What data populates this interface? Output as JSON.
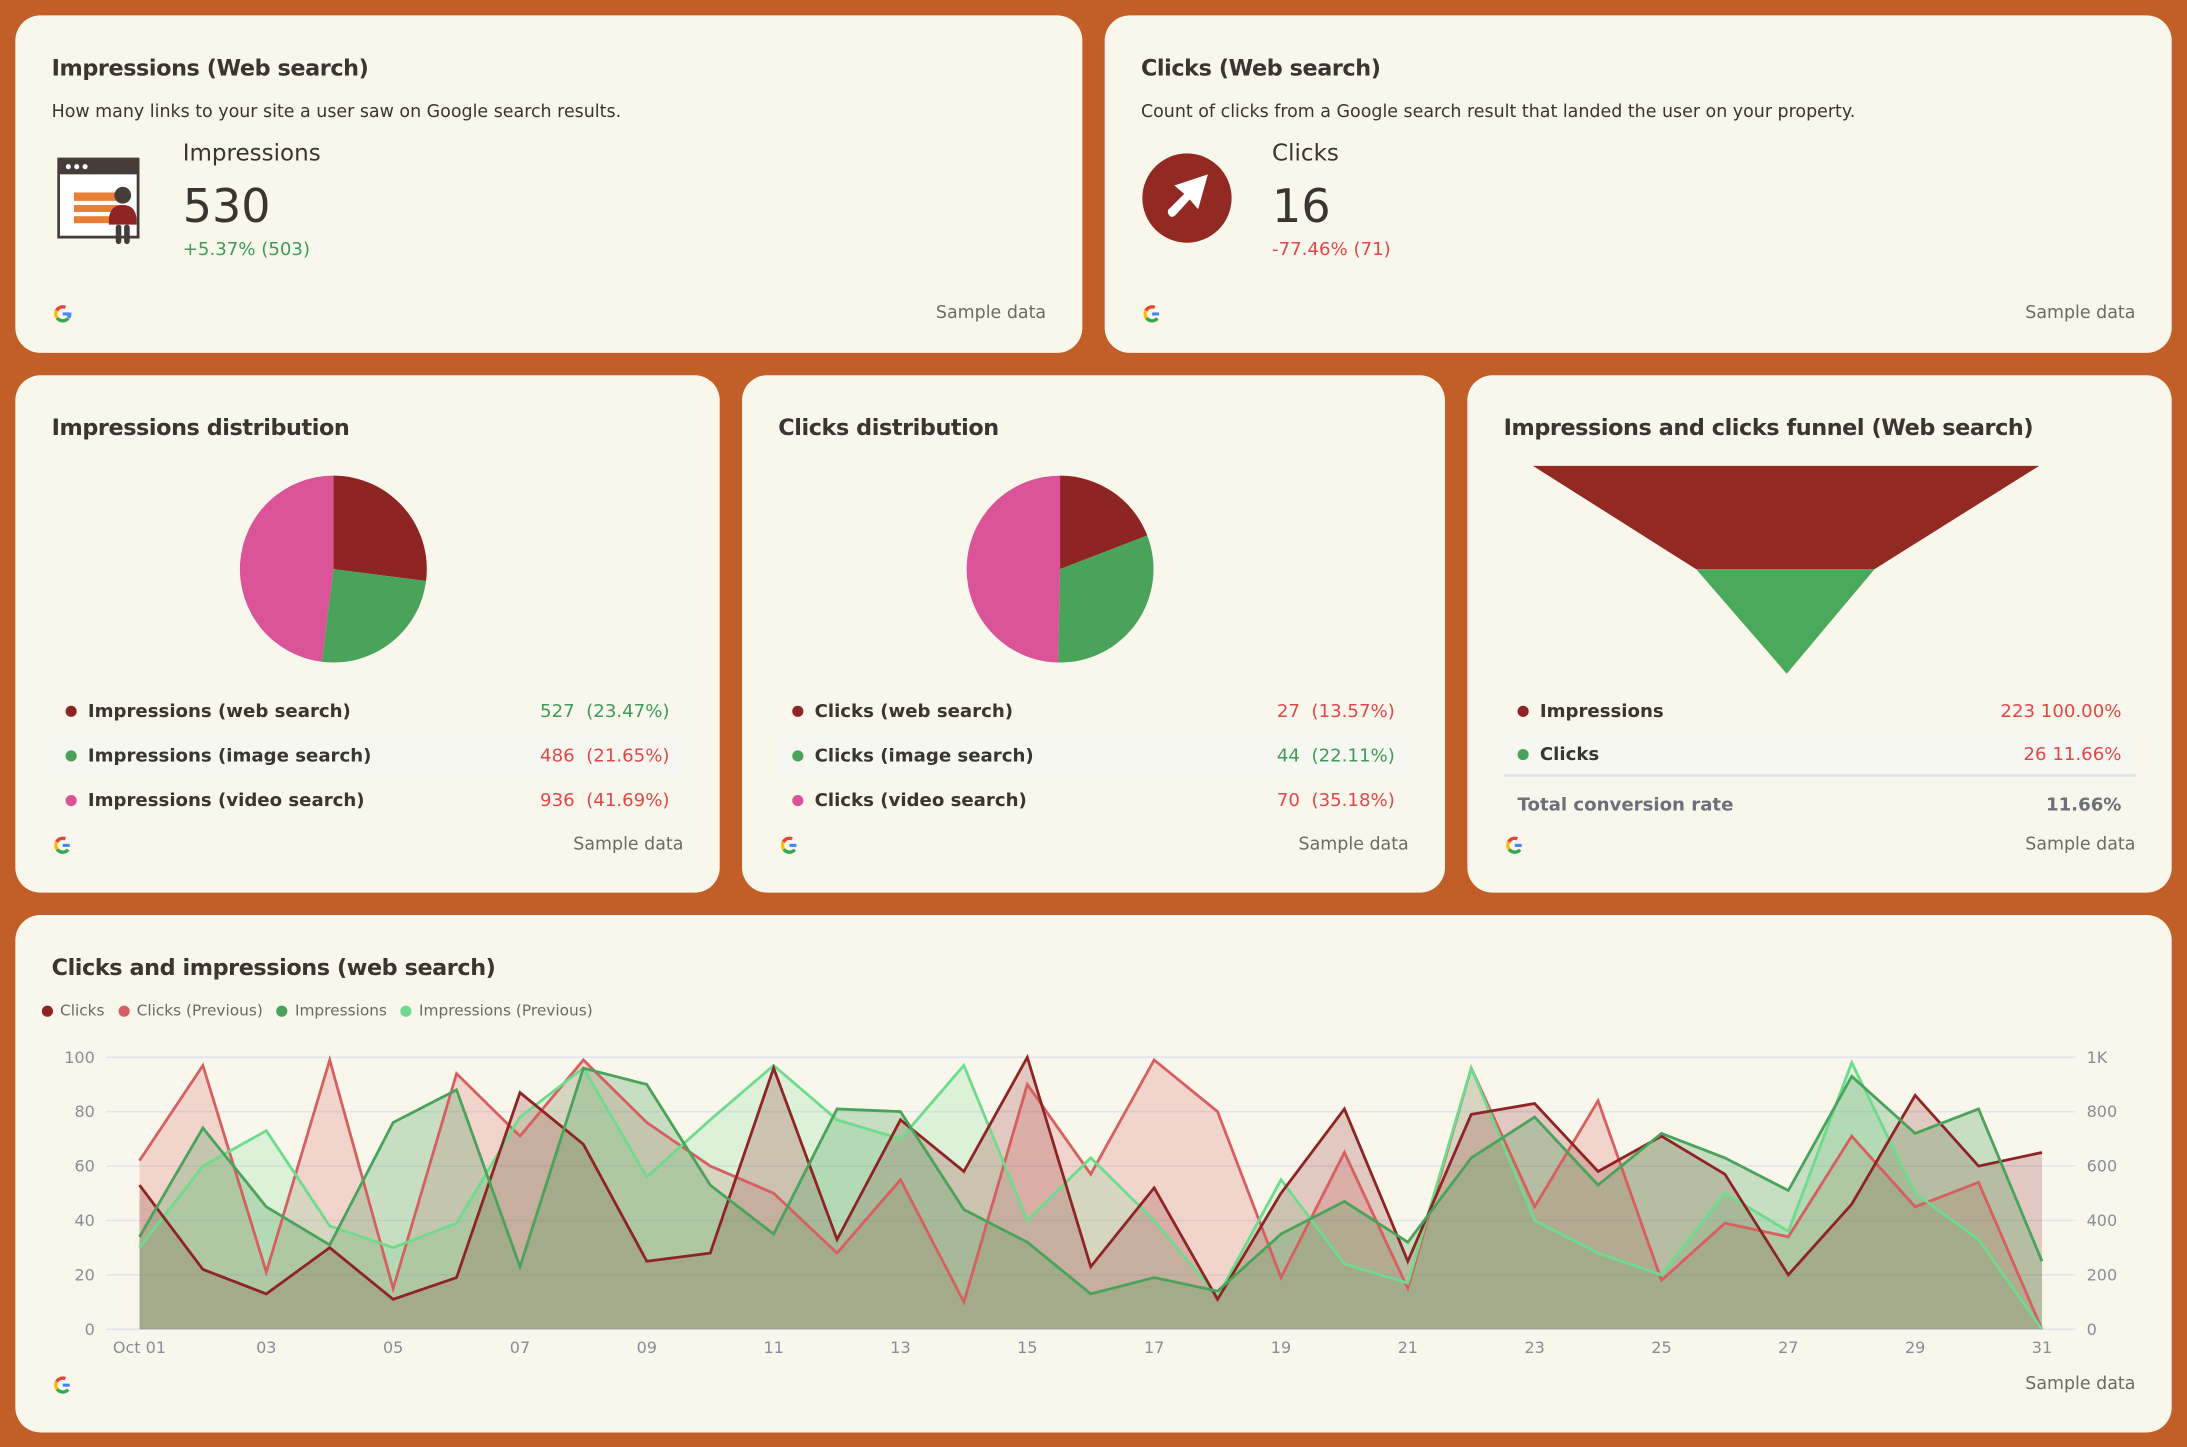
{
  "colors": {
    "background": "#C25E27",
    "card": "#F9F6EC",
    "clicks": "#8F2424",
    "clicks_prev": "#D65F5F",
    "impressions": "#4AA35A",
    "impressions_prev": "#6EDC8C",
    "pink": "#DB5499",
    "positive": "#3e9b5a",
    "negative": "#e04848"
  },
  "sample_label": "Sample data",
  "impressions_card": {
    "title": "Impressions (Web search)",
    "description": "How many links to your site a user saw on Google search results.",
    "icon": "browser-presenter-icon",
    "label": "Impressions",
    "value": "530",
    "delta": "+5.37% (503)",
    "trend": "up"
  },
  "clicks_card": {
    "title": "Clicks (Web search)",
    "description": "Count of clicks from a Google search result that landed the user on your property.",
    "icon": "cursor-arrow-icon",
    "label": "Clicks",
    "value": "16",
    "delta": "-77.46% (71)",
    "trend": "down"
  },
  "impressions_distribution": {
    "title": "Impressions distribution",
    "items": [
      {
        "label": "Impressions (web search)",
        "value": 527,
        "text": "527",
        "pct": "(23.47%)",
        "color": "#8F2424",
        "trend": "up"
      },
      {
        "label": "Impressions (image search)",
        "value": 486,
        "text": "486",
        "pct": "(21.65%)",
        "color": "#4AA35A",
        "trend": "down"
      },
      {
        "label": "Impressions (video search)",
        "value": 936,
        "text": "936",
        "pct": "(41.69%)",
        "color": "#DB5499",
        "trend": "down"
      }
    ]
  },
  "clicks_distribution": {
    "title": "Clicks distribution",
    "items": [
      {
        "label": "Clicks (web search)",
        "value": 27,
        "text": "27",
        "pct": "(13.57%)",
        "color": "#8F2424",
        "trend": "down"
      },
      {
        "label": "Clicks (image search)",
        "value": 44,
        "text": "44",
        "pct": "(22.11%)",
        "color": "#4AA35A",
        "trend": "up"
      },
      {
        "label": "Clicks (video search)",
        "value": 70,
        "text": "70",
        "pct": "(35.18%)",
        "color": "#DB5499",
        "trend": "down"
      }
    ]
  },
  "funnel": {
    "title": "Impressions and clicks funnel (Web search)",
    "items": [
      {
        "label": "Impressions",
        "value": "223",
        "pct": "100.00%",
        "color": "#8F2424"
      },
      {
        "label": "Clicks",
        "value": "26",
        "pct": "11.66%",
        "color": "#4AA35A"
      }
    ],
    "total_label": "Total conversion rate",
    "total_value": "11.66%"
  },
  "chart_data": {
    "type": "area",
    "title": "Clicks and impressions (web search)",
    "legend_position": "top-left",
    "grid": true,
    "x": [
      "Oct 01",
      "02",
      "03",
      "04",
      "05",
      "06",
      "07",
      "08",
      "09",
      "10",
      "11",
      "12",
      "13",
      "14",
      "15",
      "16",
      "17",
      "18",
      "19",
      "20",
      "21",
      "22",
      "23",
      "24",
      "25",
      "26",
      "27",
      "28",
      "29",
      "30",
      "31"
    ],
    "x_ticks": [
      "Oct 01",
      "03",
      "05",
      "07",
      "09",
      "11",
      "13",
      "15",
      "17",
      "19",
      "21",
      "23",
      "25",
      "27",
      "29",
      "31"
    ],
    "y_left": {
      "range": [
        0,
        100
      ],
      "ticks": [
        "0",
        "20",
        "40",
        "60",
        "80",
        "100"
      ]
    },
    "y_right": {
      "range": [
        0,
        1000
      ],
      "ticks": [
        "0",
        "200",
        "400",
        "600",
        "800",
        "1K"
      ]
    },
    "series": [
      {
        "name": "Clicks (Previous)",
        "axis": "left",
        "color": "#D65F5F",
        "values": [
          62,
          97,
          21,
          99,
          15,
          94,
          71,
          99,
          76,
          60,
          50,
          28,
          55,
          10,
          90,
          57,
          99,
          80,
          19,
          65,
          15,
          96,
          45,
          84,
          18,
          39,
          34,
          71,
          45,
          54,
          0
        ]
      },
      {
        "name": "Impressions (Previous)",
        "axis": "right",
        "color": "#6EDC8C",
        "values": [
          300,
          600,
          730,
          380,
          300,
          390,
          780,
          960,
          560,
          770,
          970,
          770,
          700,
          970,
          400,
          630,
          400,
          120,
          550,
          240,
          170,
          960,
          400,
          280,
          200,
          500,
          360,
          980,
          500,
          330,
          0
        ]
      },
      {
        "name": "Clicks",
        "axis": "left",
        "color": "#8F2424",
        "values": [
          53,
          22,
          13,
          30,
          11,
          19,
          87,
          68,
          25,
          28,
          96,
          33,
          77,
          58,
          100,
          23,
          52,
          11,
          50,
          81,
          25,
          79,
          83,
          58,
          71,
          57,
          20,
          46,
          86,
          60,
          65
        ]
      },
      {
        "name": "Impressions",
        "axis": "right",
        "color": "#4AA35A",
        "values": [
          340,
          740,
          450,
          310,
          760,
          880,
          230,
          960,
          900,
          530,
          350,
          810,
          800,
          440,
          320,
          130,
          190,
          140,
          350,
          470,
          320,
          630,
          780,
          530,
          720,
          630,
          510,
          930,
          720,
          810,
          250
        ]
      }
    ],
    "legend": [
      {
        "name": "Clicks",
        "color": "#8F2424"
      },
      {
        "name": "Clicks (Previous)",
        "color": "#D65F5F"
      },
      {
        "name": "Impressions",
        "color": "#4AA35A"
      },
      {
        "name": "Impressions (Previous)",
        "color": "#6EDC8C"
      }
    ]
  }
}
